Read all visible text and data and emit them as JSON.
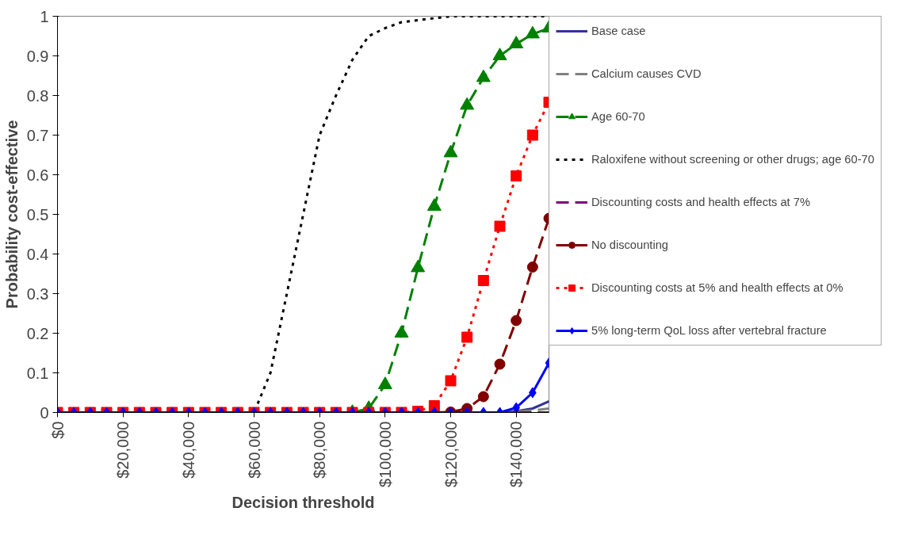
{
  "chart_data": {
    "type": "line",
    "xlabel": "Decision threshold",
    "ylabel": "Probability cost-effective",
    "x": [
      0,
      5000,
      10000,
      15000,
      20000,
      25000,
      30000,
      35000,
      40000,
      45000,
      50000,
      55000,
      60000,
      65000,
      70000,
      75000,
      80000,
      85000,
      90000,
      95000,
      100000,
      105000,
      110000,
      115000,
      120000,
      125000,
      130000,
      135000,
      140000,
      145000,
      150000
    ],
    "xlim": [
      0,
      150000
    ],
    "xticks": [
      {
        "value": 0,
        "label": "$0"
      },
      {
        "value": 20000,
        "label": "$20,000"
      },
      {
        "value": 40000,
        "label": "$40,000"
      },
      {
        "value": 60000,
        "label": "$60,000"
      },
      {
        "value": 80000,
        "label": "$80,000"
      },
      {
        "value": 100000,
        "label": "$100,000"
      },
      {
        "value": 120000,
        "label": "$120,000"
      },
      {
        "value": 140000,
        "label": "$140,000"
      }
    ],
    "ylim": [
      0,
      1
    ],
    "yticks": [
      0,
      0.1,
      0.2,
      0.3,
      0.4,
      0.5,
      0.6,
      0.7,
      0.8,
      0.9,
      1
    ],
    "grid": false,
    "legend": "right",
    "series": [
      {
        "name": "Base case",
        "color": "#333399",
        "line_style": "solid",
        "marker": "none",
        "values": [
          null,
          null,
          null,
          null,
          null,
          null,
          null,
          null,
          null,
          null,
          null,
          null,
          null,
          null,
          null,
          null,
          null,
          null,
          null,
          null,
          null,
          null,
          null,
          null,
          null,
          null,
          null,
          0,
          0.003,
          0.01,
          0.028
        ]
      },
      {
        "name": "Calcium causes CVD",
        "color": "#808080",
        "line_style": "dashed",
        "marker": "none",
        "values": [
          null,
          null,
          null,
          null,
          null,
          null,
          null,
          null,
          null,
          null,
          null,
          null,
          null,
          null,
          null,
          null,
          null,
          null,
          null,
          null,
          null,
          null,
          null,
          null,
          null,
          null,
          null,
          0,
          0.002,
          0.005,
          0.01
        ]
      },
      {
        "name": "Age 60-70",
        "color": "#008000",
        "line_style": "dashed",
        "marker": "triangle",
        "values": [
          null,
          null,
          null,
          null,
          null,
          null,
          null,
          null,
          null,
          null,
          null,
          null,
          null,
          null,
          null,
          null,
          null,
          null,
          0,
          0.01,
          0.07,
          0.2,
          0.365,
          0.52,
          0.655,
          0.775,
          0.845,
          0.9,
          0.93,
          0.955,
          0.97
        ]
      },
      {
        "name": "Raloxifene without screening or other drugs; age 60-70",
        "color": "#000000",
        "line_style": "dotted",
        "marker": "none",
        "values": [
          0,
          0,
          0,
          0,
          0,
          0,
          0,
          0,
          0,
          0,
          0,
          0,
          0,
          0.1,
          0.3,
          0.5,
          0.7,
          0.8,
          0.89,
          0.95,
          0.97,
          0.985,
          0.99,
          0.995,
          1,
          1,
          1,
          1,
          1,
          1,
          1
        ]
      },
      {
        "name": "Discounting costs and health effects at 7%",
        "color": "#800080",
        "line_style": "dashed",
        "marker": "none",
        "values": [
          null,
          null,
          null,
          null,
          null,
          null,
          null,
          null,
          null,
          null,
          null,
          null,
          null,
          null,
          null,
          null,
          null,
          null,
          null,
          null,
          null,
          null,
          null,
          null,
          null,
          null,
          null,
          0,
          0,
          0,
          0
        ]
      },
      {
        "name": "No discounting",
        "color": "#800000",
        "line_style": "dashed",
        "marker": "circle",
        "values": [
          null,
          null,
          null,
          null,
          null,
          null,
          null,
          null,
          null,
          null,
          null,
          null,
          null,
          null,
          null,
          null,
          null,
          null,
          null,
          null,
          null,
          null,
          0,
          0,
          0.001,
          0.01,
          0.04,
          0.122,
          0.232,
          0.367,
          0.49
        ]
      },
      {
        "name": "Discounting costs at 5% and health effects at 0%",
        "color": "#ff0000",
        "line_style": "dotted",
        "marker": "square",
        "values": [
          0,
          0,
          0,
          0,
          0,
          0,
          0,
          0,
          0,
          0,
          0,
          0,
          0,
          0,
          0,
          0,
          0,
          0,
          0,
          0,
          0,
          0,
          0.003,
          0.017,
          0.08,
          0.19,
          0.333,
          0.47,
          0.597,
          0.7,
          0.783
        ]
      },
      {
        "name": "5% long-term QoL loss after vertebral fracture",
        "color": "#0000ff",
        "line_style": "solid",
        "marker": "diamond",
        "values": [
          0,
          0,
          0,
          0,
          0,
          0,
          0,
          0,
          0,
          0,
          0,
          0,
          0,
          0,
          0,
          0,
          0,
          0,
          0,
          0,
          0,
          0,
          0,
          0,
          0,
          0,
          0,
          0,
          0.012,
          0.05,
          0.125
        ]
      }
    ]
  }
}
